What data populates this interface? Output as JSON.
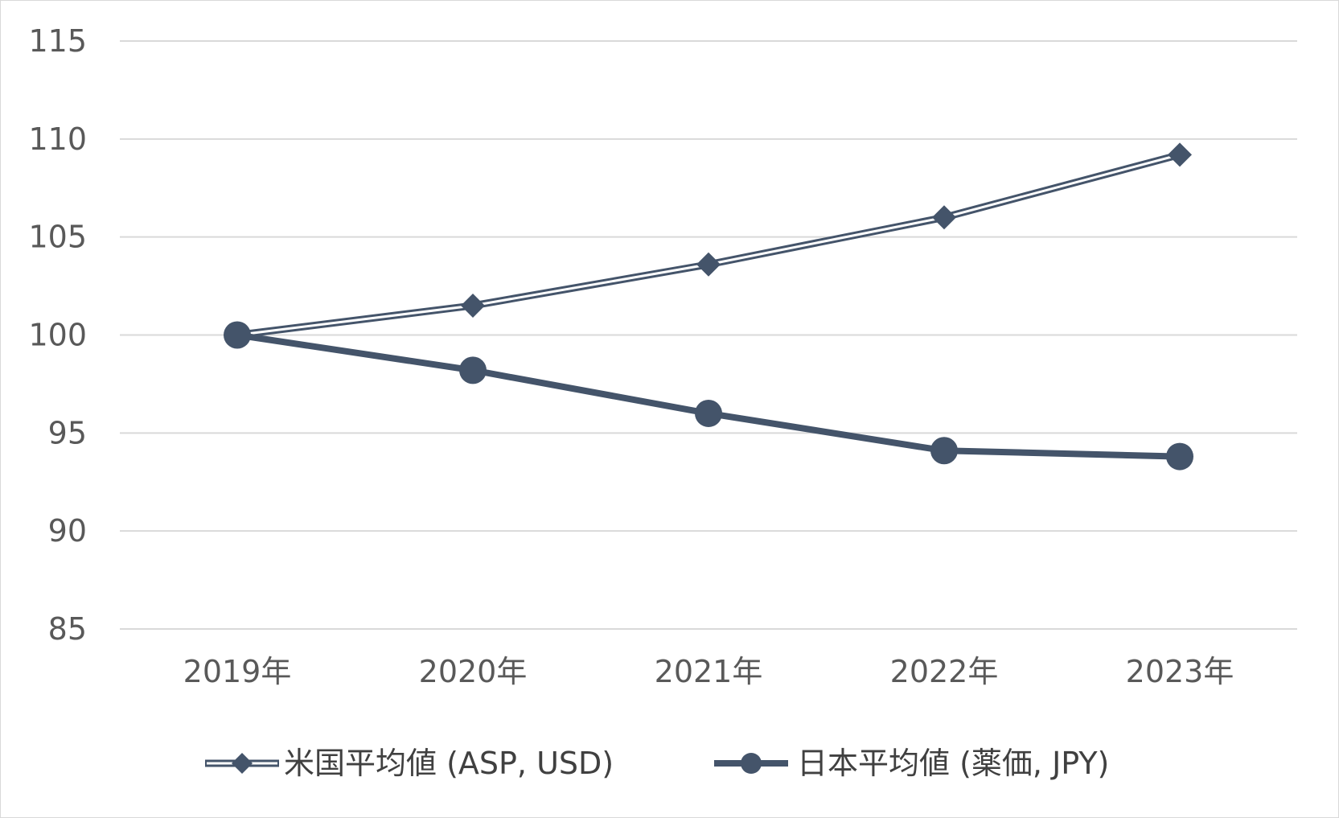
{
  "chart_data": {
    "type": "line",
    "categories": [
      "2019年",
      "2020年",
      "2021年",
      "2022年",
      "2023年"
    ],
    "series": [
      {
        "name": "米国平均値 (ASP, USD)",
        "values": [
          100.0,
          101.5,
          103.6,
          106.0,
          109.2
        ],
        "color": "#44546a",
        "style": "double-line",
        "marker": "diamond"
      },
      {
        "name": "日本平均値 (薬価, JPY)",
        "values": [
          100.0,
          98.2,
          96.0,
          94.1,
          93.8
        ],
        "color": "#44546a",
        "style": "thick-line",
        "marker": "circle"
      }
    ],
    "y_ticks": [
      "115",
      "110",
      "105",
      "100",
      "95",
      "90",
      "85"
    ],
    "ylim": [
      85,
      115
    ],
    "grid": true,
    "gridline_color": "#d9d9d9",
    "legend_position": "bottom"
  }
}
